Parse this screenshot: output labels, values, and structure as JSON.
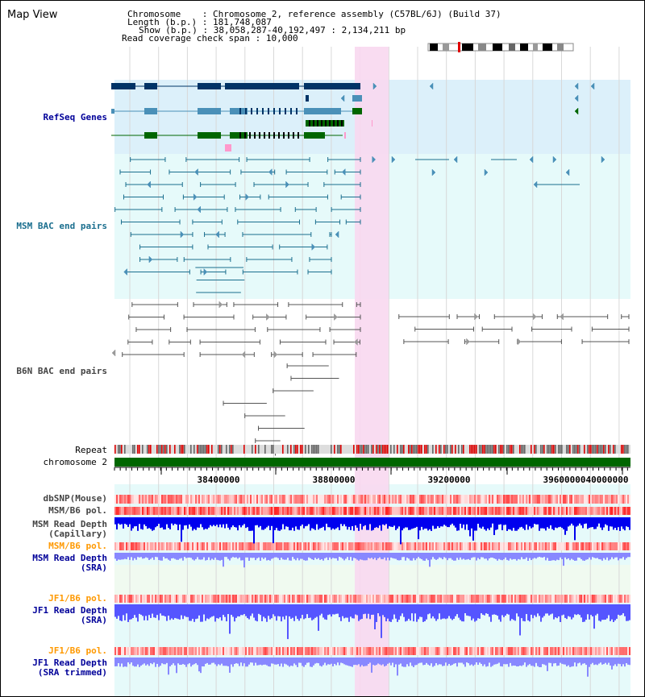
{
  "title": "Map View",
  "info": {
    "chromosome_label": "Chromosome",
    "chromosome_value": "Chromosome 2, reference assembly (C57BL/6J) (Build 37)",
    "length_label": "Length (b.p.)",
    "length_value": "181,748,087",
    "show_label": "Show (b.p.)",
    "show_value": "38,058,287-40,192,497 : 2,134,211 bp",
    "span_label": "Read coverage check span",
    "span_value": "10,000"
  },
  "tracks": {
    "refseq": "RefSeq Genes",
    "msm_bac": "MSM BAC end pairs",
    "b6n_bac": "B6N BAC end pairs",
    "repeat": "Repeat",
    "chromosome": "chromosome 2",
    "dbsnp": "dbSNP(Mouse)",
    "msm_b6_pol": "MSM/B6 pol.",
    "msm_depth_cap_1": "MSM Read Depth",
    "msm_depth_cap_2": "(Capillary)",
    "msm_b6_pol_2": "MSM/B6 pol.",
    "msm_depth_sra_1": "MSM Read Depth",
    "msm_depth_sra_2": "(SRA)",
    "jf1_b6_pol": "JF1/B6 pol.",
    "jf1_depth_sra_1": "JF1 Read Depth",
    "jf1_depth_sra_2": "(SRA)",
    "jf1_b6_pol_2": "JF1/B6 pol.",
    "jf1_depth_trim_1": "JF1 Read Depth",
    "jf1_depth_trim_2": "(SRA trimmed)"
  },
  "axis": {
    "ticks": [
      "38400000",
      "38800000",
      "39200000",
      "39600000",
      "40000000"
    ]
  },
  "colors": {
    "refseq_bg": "#dcf0fa",
    "msm_bg": "#e6fafa",
    "highlight": "#f8d8f0",
    "gene_dark": "#003366",
    "gene_mid": "#4a90b8",
    "gene_green": "#006600",
    "msm_line": "#1a6e8e",
    "b6n_line": "#555555",
    "chromosome": "#006600",
    "label_navy": "#000099",
    "label_teal": "#1a6e8e",
    "label_orange": "#ff9900",
    "label_gray": "#444444",
    "depth_dark": "#0000ee",
    "depth_light": "#8888ff",
    "depth_mid": "#5555ff"
  }
}
